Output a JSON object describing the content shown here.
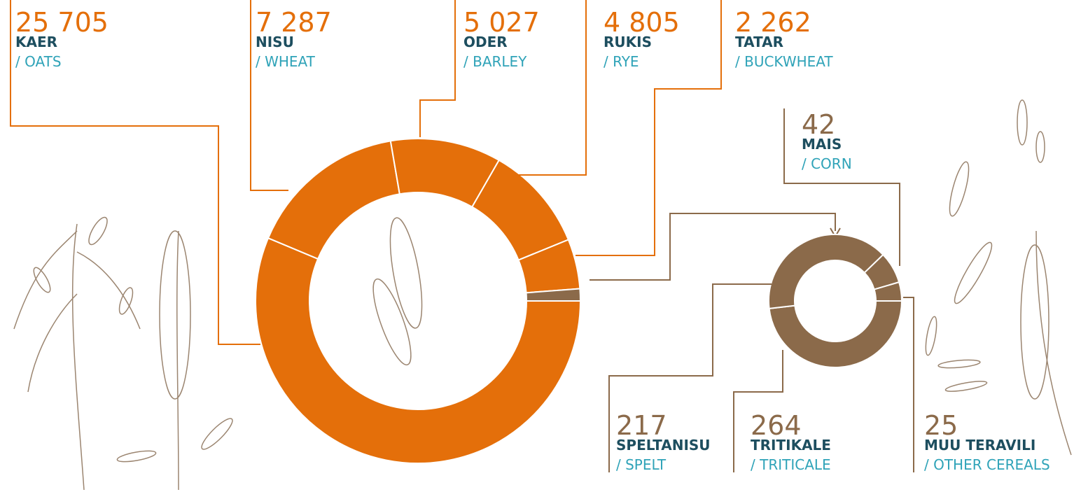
{
  "chart_data": [
    {
      "type": "pie",
      "donut": true,
      "categories": [
        "KAER",
        "NISU",
        "ODER",
        "RUKIS",
        "TATAR",
        null
      ],
      "categories_en": [
        "/ OATS",
        "/ WHEAT",
        "/ BARLEY",
        "/ RYE",
        "/ BUCKWHEAT",
        null
      ],
      "values": [
        25705,
        7287,
        5027,
        4805,
        2262,
        548
      ],
      "value_labels": [
        "25 705",
        "7 287",
        "5 027",
        "4 805",
        "2 262",
        null
      ],
      "colors": [
        "#e46f0a",
        "#e46f0a",
        "#e46f0a",
        "#e46f0a",
        "#e46f0a",
        "#8b6a4a"
      ]
    },
    {
      "type": "pie",
      "donut": true,
      "categories": [
        "TRITIKALE",
        "SPELTANISU",
        "MAIS",
        "MUU TERAVILI"
      ],
      "categories_en": [
        "/ TRITICALE",
        "/ SPELT",
        "/ CORN",
        "/ OTHER CEREALS"
      ],
      "values": [
        264,
        217,
        42,
        25
      ],
      "colors": [
        "#8b6a4a",
        "#8b6a4a",
        "#8b6a4a",
        "#8b6a4a"
      ]
    }
  ]
}
